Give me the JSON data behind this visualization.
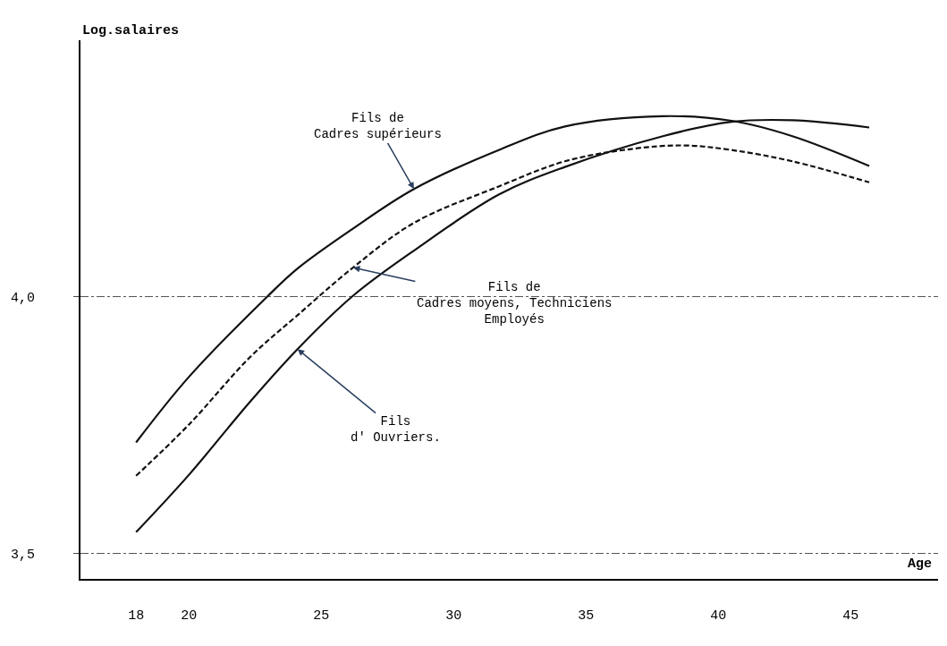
{
  "chart_data": {
    "type": "line",
    "ylabel": "Log.salaires",
    "xlabel": "Age",
    "xlim": [
      15.9,
      48.3
    ],
    "xticks": [
      18,
      20,
      25,
      30,
      35,
      40,
      45
    ],
    "ylim": [
      3.45,
      4.5
    ],
    "yticks": [
      {
        "value": 3.5,
        "label": "3,5"
      },
      {
        "value": 4.0,
        "label": "4,0"
      }
    ],
    "grid": "y",
    "marker": "none",
    "series": [
      {
        "color": "#111111",
        "line_style": "solid",
        "x": [
          18,
          20,
          22.95,
          24.1,
          26.2,
          28.5,
          31.7,
          34.2,
          37.9,
          40.5,
          42.8,
          45.7
        ],
        "values": [
          3.716,
          3.844,
          4.0,
          4.055,
          4.133,
          4.21,
          4.286,
          4.332,
          4.352,
          4.343,
          4.313,
          4.255
        ]
      },
      {
        "color": "#111111",
        "line_style": "dashed",
        "x": [
          18,
          20,
          22.3,
          24.1,
          26.2,
          28.5,
          31.7,
          34.2,
          36.7,
          38.7,
          40.5,
          42.8,
          45.7
        ],
        "values": [
          3.651,
          3.751,
          3.882,
          3.964,
          4.057,
          4.144,
          4.215,
          4.264,
          4.288,
          4.295,
          4.286,
          4.264,
          4.223
        ]
      },
      {
        "color": "#111111",
        "line_style": "solid",
        "x": [
          18,
          20,
          22.3,
          24.1,
          26.2,
          28.5,
          31.7,
          34.2,
          37.9,
          40.5,
          42.8,
          45.7
        ],
        "values": [
          3.541,
          3.653,
          3.795,
          3.898,
          4.002,
          4.09,
          4.199,
          4.253,
          4.313,
          4.341,
          4.344,
          4.33
        ]
      }
    ],
    "annotations": [
      {
        "text": "Fils de\nCadres supérieurs",
        "x": 28.5,
        "y": 4.21
      },
      {
        "text": "Fils de\nCadres moyens, Techniciens\nEmployés",
        "x": 26.2,
        "y": 4.057
      },
      {
        "text": "Fils\nd' Ouvriers.",
        "x": 24.1,
        "y": 3.898
      }
    ]
  }
}
